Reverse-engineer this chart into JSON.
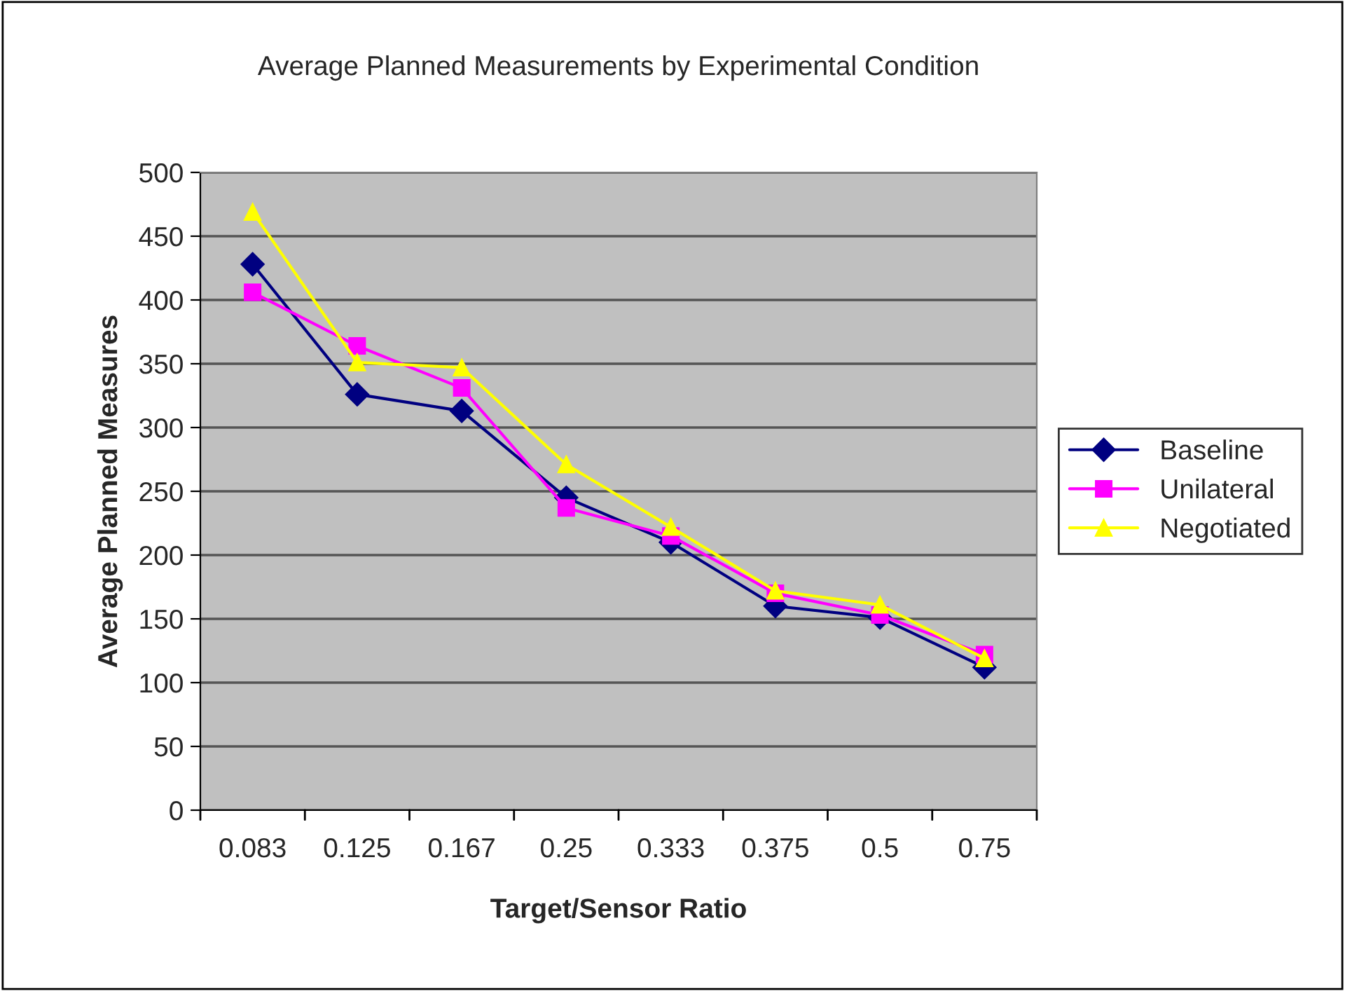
{
  "chart_data": {
    "type": "line",
    "title": "Average Planned Measurements by Experimental Condition",
    "xlabel": "Target/Sensor Ratio",
    "ylabel": "Average Planned Measures",
    "categories": [
      "0.083",
      "0.125",
      "0.167",
      "0.25",
      "0.333",
      "0.375",
      "0.5",
      "0.75"
    ],
    "series": [
      {
        "name": "Baseline",
        "color": "#000080",
        "marker": "diamond",
        "values": [
          428,
          326,
          313,
          245,
          210,
          160,
          151,
          112
        ]
      },
      {
        "name": "Unilateral",
        "color": "#ff00ff",
        "marker": "square",
        "values": [
          406,
          364,
          331,
          237,
          215,
          170,
          153,
          122
        ]
      },
      {
        "name": "Negotiated",
        "color": "#ffff00",
        "marker": "triangle",
        "values": [
          469,
          351,
          347,
          271,
          222,
          172,
          161,
          119
        ]
      }
    ],
    "ylim": [
      0,
      500
    ],
    "yticks": [
      0,
      50,
      100,
      150,
      200,
      250,
      300,
      350,
      400,
      450,
      500
    ],
    "grid": "y",
    "legend": "right",
    "line_style": "solid"
  }
}
